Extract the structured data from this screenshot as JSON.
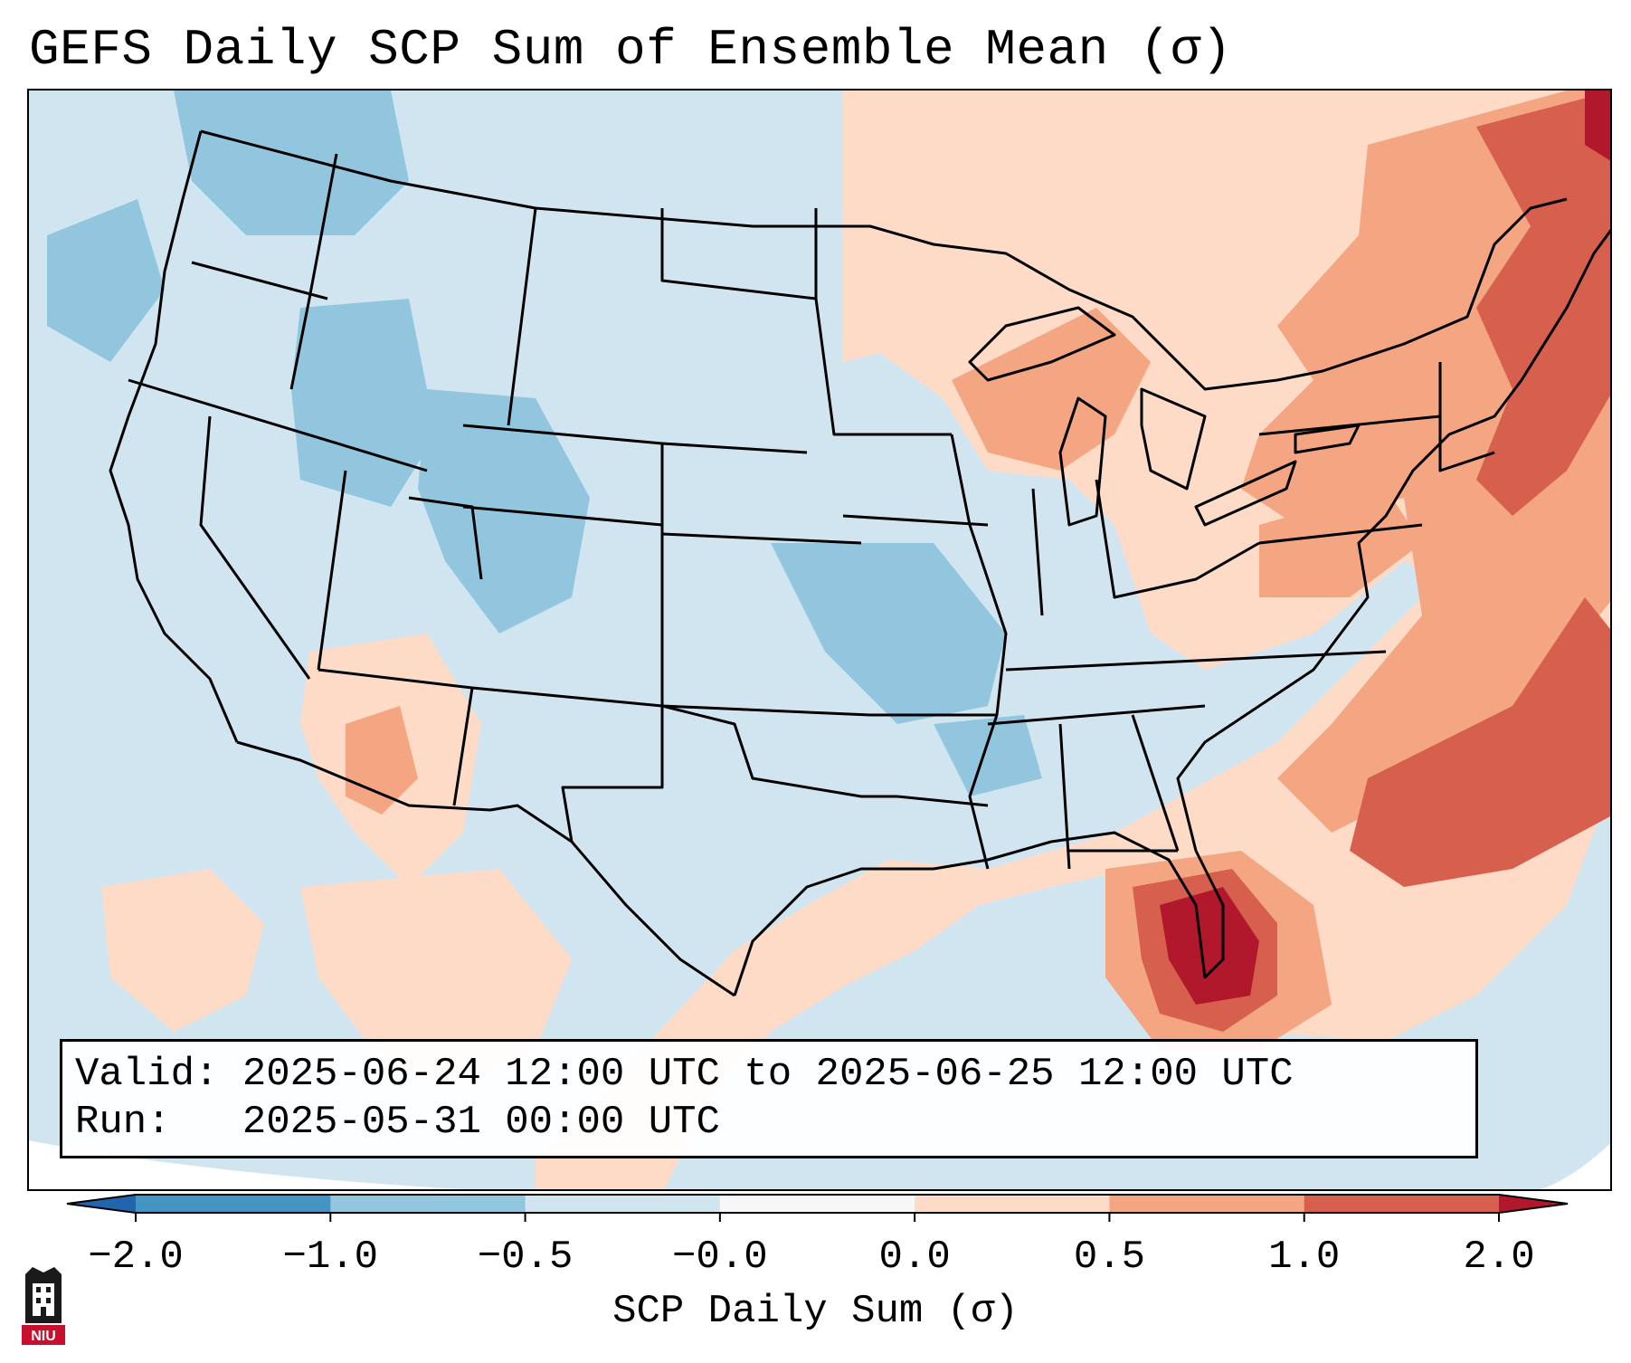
{
  "title": "GEFS Daily SCP Sum of Ensemble Mean (σ)",
  "info": {
    "valid_line": "Valid: 2025-06-24 12:00 UTC to 2025-06-25 12:00 UTC",
    "run_line": "Run:   2025-05-31 00:00 UTC"
  },
  "colorbar": {
    "label": "SCP Daily Sum (σ)",
    "ticks": [
      "−2.0",
      "−1.0",
      "−0.5",
      "−0.0",
      "0.0",
      "0.5",
      "1.0",
      "2.0"
    ],
    "bins": [
      {
        "from": -2.0,
        "to": -1.0,
        "color": "#4393c3"
      },
      {
        "from": -1.0,
        "to": -0.5,
        "color": "#92c5de"
      },
      {
        "from": -0.5,
        "to": -0.0,
        "color": "#d1e5f0"
      },
      {
        "from": -0.0,
        "to": 0.0,
        "color": "#f7f7f7"
      },
      {
        "from": 0.0,
        "to": 0.5,
        "color": "#fddbc7"
      },
      {
        "from": 0.5,
        "to": 1.0,
        "color": "#f4a582"
      },
      {
        "from": 1.0,
        "to": 2.0,
        "color": "#d6604d"
      }
    ],
    "under_color": "#2166ac",
    "over_color": "#b2182b",
    "extend": "both"
  },
  "map": {
    "region": "Continental United States",
    "projection": "Lambert Conformal",
    "background_color": "#d1e5f0",
    "border_color": "#000000"
  },
  "logo": {
    "text": "NIU"
  }
}
